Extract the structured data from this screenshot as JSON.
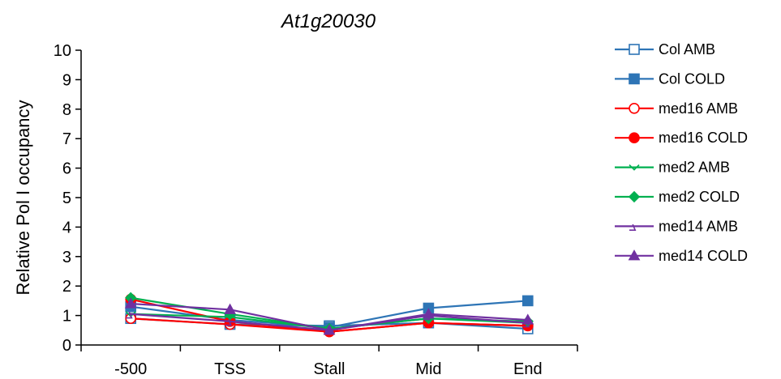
{
  "chart_data": {
    "type": "line",
    "title": "At1g20030",
    "xlabel": "",
    "ylabel": "Relative Pol I occupancy",
    "categories": [
      "-500",
      "TSS",
      "Stall",
      "Mid",
      "End"
    ],
    "ylim": [
      0,
      10
    ],
    "yticks": [
      0,
      1,
      2,
      3,
      4,
      5,
      6,
      7,
      8,
      9,
      10
    ],
    "grid": false,
    "legend_position": "right",
    "series": [
      {
        "name": "Col AMB",
        "values": [
          0.9,
          0.7,
          0.65,
          0.75,
          0.55
        ],
        "color": "#2e75b6",
        "marker": "square-open"
      },
      {
        "name": "Col COLD",
        "values": [
          1.3,
          0.85,
          0.6,
          1.25,
          1.5
        ],
        "color": "#2e75b6",
        "marker": "square-filled"
      },
      {
        "name": "med16 AMB",
        "values": [
          0.9,
          0.7,
          0.45,
          0.75,
          0.65
        ],
        "color": "#ff0000",
        "marker": "circle-open"
      },
      {
        "name": "med16 COLD",
        "values": [
          1.55,
          0.8,
          0.45,
          0.75,
          0.65
        ],
        "color": "#ff0000",
        "marker": "circle-filled"
      },
      {
        "name": "med2 AMB",
        "values": [
          1.05,
          0.95,
          0.55,
          0.9,
          0.75
        ],
        "color": "#00b050",
        "marker": "chevron-open"
      },
      {
        "name": "med2 COLD",
        "values": [
          1.6,
          1.05,
          0.55,
          0.9,
          0.8
        ],
        "color": "#00b050",
        "marker": "diamond-filled"
      },
      {
        "name": "med14 AMB",
        "values": [
          1.05,
          0.8,
          0.5,
          1.0,
          0.75
        ],
        "color": "#7030a0",
        "marker": "triangle-open"
      },
      {
        "name": "med14 COLD",
        "values": [
          1.4,
          1.2,
          0.5,
          1.05,
          0.85
        ],
        "color": "#7030a0",
        "marker": "triangle-filled"
      }
    ]
  }
}
